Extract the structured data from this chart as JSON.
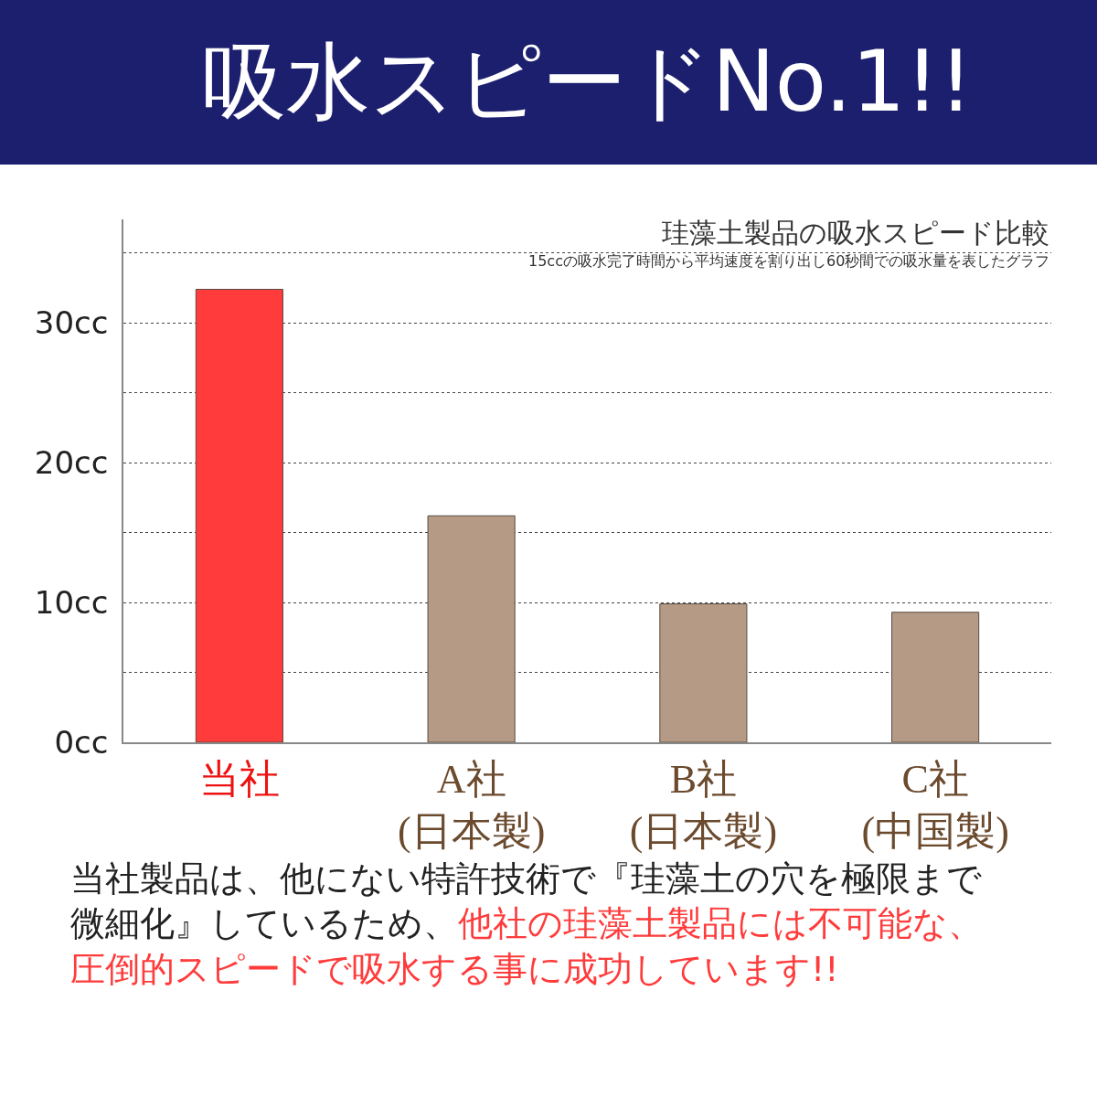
{
  "chart_data": {
    "type": "bar",
    "title": "吸水スピードNo.1!!",
    "subtitle": "珪藻土製品の吸水スピード比較",
    "categories": [
      "当社",
      "A社\n(日本製)",
      "B社\n(日本製)",
      "C社\n(中国製)"
    ],
    "values": [
      32.4,
      16.2,
      9.9,
      9.3
    ],
    "colors": [
      "#ff3b3b",
      "#b59b86",
      "#b59b86",
      "#b59b86"
    ],
    "ylim": [
      0,
      37.4
    ],
    "yticks": [
      {
        "value": 0,
        "label": "0cc"
      },
      {
        "value": 5,
        "label": null
      },
      {
        "value": 10,
        "label": "10cc"
      },
      {
        "value": 15,
        "label": null
      },
      {
        "value": 20,
        "label": "20cc"
      },
      {
        "value": 25,
        "label": null
      },
      {
        "value": 30,
        "label": "30cc"
      },
      {
        "value": 35,
        "label": null
      }
    ],
    "grid": "y",
    "line_style": "dotted",
    "annotations": [
      "15ccの吸水完了時間から平均速度を割り出し60秒間での吸水量を表したグラフ",
      "当社製品は、他にない特許技術で『珪藻土の穴を極限まで微細化』しているため、",
      "他社の珪藻土製品には不可能な、圧倒的スピードで吸水する事に成功しています!!"
    ]
  }
}
